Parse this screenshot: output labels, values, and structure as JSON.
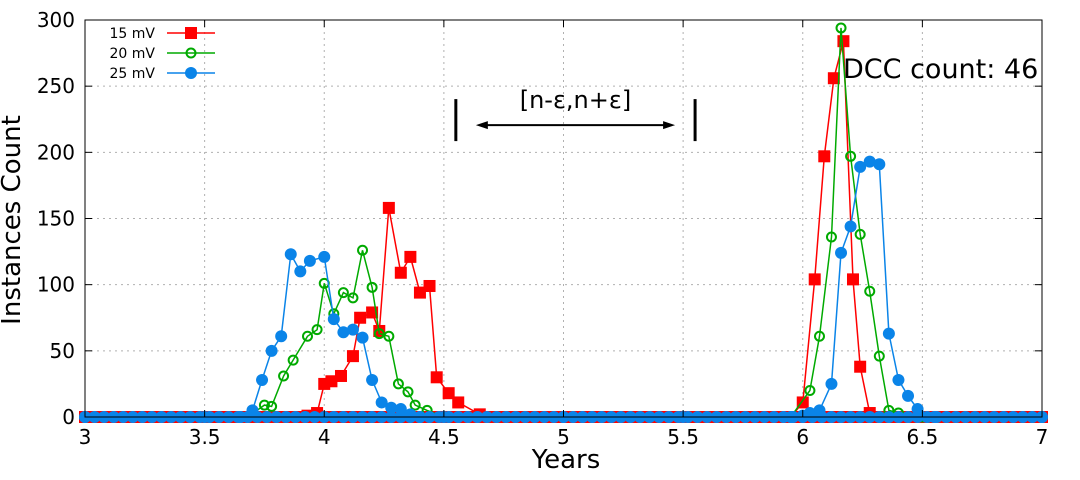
{
  "chart_data": {
    "type": "line",
    "title": "",
    "xlabel": "Years",
    "ylabel": "Instances Count",
    "xlim": [
      3,
      7
    ],
    "ylim": [
      0,
      300
    ],
    "xticks": [
      "3",
      "3.5",
      "4",
      "4.5",
      "5",
      "5.5",
      "6",
      "6.5",
      "7"
    ],
    "xtick_values": [
      3,
      3.5,
      4,
      4.5,
      5,
      5.5,
      6,
      6.5,
      7
    ],
    "yticks": [
      "0",
      "50",
      "100",
      "150",
      "200",
      "250",
      "300"
    ],
    "ytick_values": [
      0,
      50,
      100,
      150,
      200,
      250,
      300
    ],
    "grid": true,
    "legend_position": "top-left",
    "annotations": {
      "dcc_count": "DCC count: 46",
      "interval": "[n-ε,n+ε]",
      "interval_left_x": 4.55,
      "interval_right_x": 5.55,
      "interval_y": 210
    },
    "series": [
      {
        "name": "15 mV",
        "color": "#ff0000",
        "marker": "square-filled",
        "x": [
          3.0,
          3.5,
          3.7,
          3.8,
          3.87,
          3.93,
          3.97,
          4.0,
          4.03,
          4.07,
          4.12,
          4.15,
          4.2,
          4.23,
          4.27,
          4.32,
          4.36,
          4.4,
          4.44,
          4.47,
          4.52,
          4.56,
          4.65,
          5.0,
          5.5,
          5.95,
          6.0,
          6.05,
          6.09,
          6.13,
          6.17,
          6.21,
          6.24,
          6.28,
          6.35,
          6.5,
          7.0
        ],
        "y": [
          0,
          0,
          0,
          0,
          0,
          1,
          3,
          25,
          27,
          31,
          46,
          75,
          79,
          65,
          158,
          109,
          121,
          94,
          99,
          30,
          18,
          11,
          2,
          0,
          0,
          0,
          11,
          104,
          197,
          256,
          284,
          104,
          38,
          3,
          0,
          0,
          0
        ]
      },
      {
        "name": "20 mV",
        "color": "#00aa00",
        "marker": "circle-open",
        "x": [
          3.0,
          3.5,
          3.68,
          3.75,
          3.78,
          3.83,
          3.87,
          3.93,
          3.97,
          4.0,
          4.04,
          4.08,
          4.12,
          4.16,
          4.2,
          4.23,
          4.27,
          4.31,
          4.35,
          4.38,
          4.43,
          4.5,
          5.0,
          5.5,
          5.95,
          6.03,
          6.07,
          6.12,
          6.16,
          6.2,
          6.24,
          6.28,
          6.32,
          6.36,
          6.4,
          6.5,
          7.0
        ],
        "y": [
          0,
          0,
          0,
          9,
          8,
          31,
          43,
          61,
          66,
          101,
          78,
          94,
          90,
          126,
          98,
          63,
          61,
          25,
          19,
          9,
          5,
          0,
          0,
          0,
          0,
          20,
          61,
          136,
          294,
          197,
          138,
          95,
          46,
          5,
          3,
          0,
          0
        ]
      },
      {
        "name": "25 mV",
        "color": "#0a84e8",
        "marker": "circle-filled",
        "x": [
          3.0,
          3.5,
          3.65,
          3.7,
          3.74,
          3.78,
          3.82,
          3.86,
          3.9,
          3.94,
          4.0,
          4.04,
          4.08,
          4.12,
          4.16,
          4.2,
          4.24,
          4.28,
          4.32,
          4.36,
          4.4,
          4.5,
          5.0,
          5.5,
          5.95,
          6.0,
          6.03,
          6.07,
          6.12,
          6.16,
          6.2,
          6.24,
          6.28,
          6.32,
          6.36,
          6.4,
          6.44,
          6.48,
          6.55,
          7.0
        ],
        "y": [
          0,
          0,
          0,
          5,
          28,
          50,
          61,
          123,
          110,
          118,
          121,
          74,
          64,
          66,
          60,
          28,
          11,
          7,
          6,
          2,
          0,
          0,
          0,
          0,
          0,
          1,
          3,
          5,
          25,
          124,
          144,
          189,
          193,
          191,
          63,
          28,
          16,
          6,
          0,
          0
        ]
      }
    ]
  }
}
